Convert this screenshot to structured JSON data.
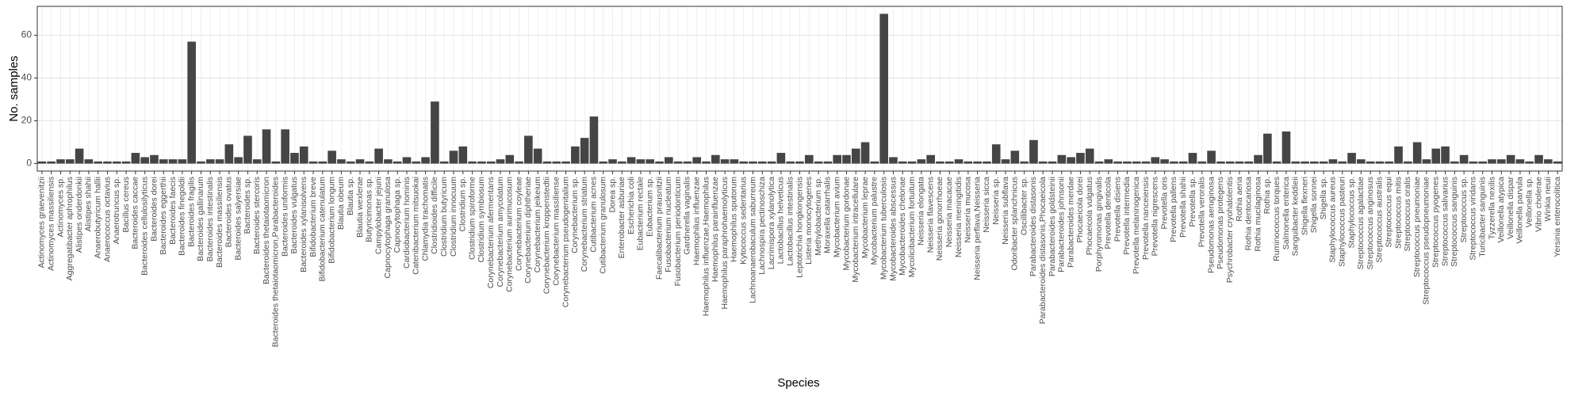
{
  "chart_data": {
    "type": "bar",
    "x_label": "Species",
    "y_label": "No. samples",
    "categories": [
      "Actinomyces graevenitzii",
      "Actinomyces massiliensis",
      "Actinomyces sp.",
      "Aggregatibacter aphrophilus",
      "Alistipes onderdonkii",
      "Alistipes shahii",
      "Anaerobutyricum hallii",
      "Anaerococcus octavius",
      "Anaerotruncus sp.",
      "Bacillus cereus",
      "Bacteroides caccae",
      "Bacteroides cellulosilyticus",
      "Bacteroides dorei",
      "Bacteroides eggerthii",
      "Bacteroides faecis",
      "Bacteroides finegoldii",
      "Bacteroides fragilis",
      "Bacteroides gallinarum",
      "Bacteroides intestinalis",
      "Bacteroides massiliensis",
      "Bacteroides ovatus",
      "Bacteroides salyersiae",
      "Bacteroides sp.",
      "Bacteroides stercoris",
      "Bacteroides thetaiotaomicron",
      "Bacteroides thetaiotaomicron,Parabacteroides",
      "Bacteroides uniformis",
      "Bacteroides vulgatus",
      "Bacteroides xylanisolvens",
      "Bifidobacterium breve",
      "Bifidobacterium catenulatum",
      "Bifidobacterium longum",
      "Blautia obeum",
      "Blautia sp.",
      "Blautia wexlerae",
      "Butyricimonas sp.",
      "Campylobacter jejuni",
      "Capnocytophaga granulosa",
      "Capnocytophaga sp.",
      "Cardiobacterium hominis",
      "Catenibacterium mitsuokai",
      "Chlamydia trachomatis",
      "Clostridioides difficile",
      "Clostridium butyricum",
      "Clostridium innocuum",
      "Clostridium sp.",
      "Clostridium spiroforme",
      "Clostridium symbiosum",
      "Corynebacterium afermentans",
      "Corynebacterium amycolatum",
      "Corynebacterium aurimucosum",
      "Corynebacterium coyleae",
      "Corynebacterium diphtheriae",
      "Corynebacterium jeikeium",
      "Corynebacterium kroppenstedtii",
      "Corynebacterium massiliense",
      "Corynebacterium pseudogenitalium",
      "Corynebacterium sp.",
      "Corynebacterium striatum",
      "Cutibacterium acnes",
      "Cutibacterium granulosum",
      "Dorea sp.",
      "Enterobacter asburiae",
      "Escherichia coli",
      "Eubacterium rectale",
      "Eubacterium sp.",
      "Faecalibacterium prausnitzii",
      "Fusobacterium nucleatum",
      "Fusobacterium periodonticum",
      "Gardnerella vaginalis",
      "Haemophilus influenzae",
      "Haemophilus influenzae,Haemophilus",
      "Haemophilus parainfluenzae",
      "Haemophilus paraphrohaemolyticus",
      "Haemophilus sputorum",
      "Kytococcus sedentarius",
      "Lachnoanaerobaculum saburreum",
      "Lachnospira pectinoschiza",
      "Lacrimispora xylanolytica",
      "Lactobacillus helveticus",
      "Lactobacillus intestinalis",
      "Leptotrichia hongkongensis",
      "Listeria monocytogenes",
      "Methylobacterium sp.",
      "Moraxella catarrhalis",
      "Mycobacterium avium",
      "Mycobacterium gordonae",
      "Mycobacterium intracellulare",
      "Mycobacterium leprae",
      "Mycobacterium palustre",
      "Mycobacterium tuberculosis",
      "Mycobacteroides abscessus",
      "Mycobacteroides chelonae",
      "Mycolicibacterium fortuitum",
      "Neisseria elongata",
      "Neisseria flavescens",
      "Neisseria gonorrhoeae",
      "Neisseria macacae",
      "Neisseria meningitidis",
      "Neisseria mucosa",
      "Neisseria perflava,Neisseria",
      "Neisseria sicca",
      "Neisseria sp.",
      "Neisseria subflava",
      "Odoribacter splanchnicus",
      "Oscillibacter sp.",
      "Parabacteroides distasonis",
      "Parabacteroides distasonis,Phocaeicola",
      "Parabacteroides goldsteinii",
      "Parabacteroides johnsonii",
      "Parabacteroides merdae",
      "Phocaeicola dorei",
      "Phocaeicola vulgatus",
      "Porphyromonas gingivalis",
      "Prevotella denticola",
      "Prevotella disiens",
      "Prevotella intermedia",
      "Prevotella melaninogenica",
      "Prevotella nanceiensis",
      "Prevotella nigrescens",
      "Prevotella oris",
      "Prevotella pallens",
      "Prevotella shahii",
      "Prevotella sp.",
      "Prevotella veroralis",
      "Pseudomonas aeruginosa",
      "Pseudomonas protegens",
      "Psychrobacter cryohalolentis",
      "Rothia aeria",
      "Rothia dentocariosa",
      "Rothia mucilaginosa",
      "Rothia sp.",
      "Ruminococcus torques",
      "Salmonella enterica",
      "Sanguibacter keddieii",
      "Shigella flexneri",
      "Shigella sonnei",
      "Shigella sp.",
      "Staphylococcus aureus",
      "Staphylococcus pasteuri",
      "Staphylococcus sp.",
      "Streptococcus agalactiae",
      "Streptococcus anginosus",
      "Streptococcus australis",
      "Streptococcus equi",
      "Streptococcus mitis",
      "Streptococcus oralis",
      "Streptococcus pneumoniae",
      "Streptococcus pseudopneumoniae",
      "Streptococcus pyogenes",
      "Streptococcus salivarius",
      "Streptococcus sanguinis",
      "Streptococcus sp.",
      "Streptococcus viridans",
      "Turicibacter sanguinis",
      "Tyzzerella nexilis",
      "Veillonella atypica",
      "Veillonella dispar",
      "Veillonella parvula",
      "Veillonella sp.",
      "Vibrio cholerae",
      "Winkia neuii",
      "Yersinia enterocolitica"
    ],
    "values": [
      1,
      1,
      2,
      2,
      7,
      2,
      1,
      1,
      1,
      1,
      5,
      3,
      4,
      2,
      2,
      2,
      57,
      1,
      2,
      2,
      9,
      3,
      13,
      2,
      16,
      1,
      16,
      5,
      8,
      1,
      1,
      6,
      2,
      1,
      2,
      1,
      7,
      2,
      1,
      3,
      1,
      3,
      29,
      1,
      6,
      8,
      1,
      1,
      1,
      2,
      4,
      1,
      13,
      7,
      1,
      1,
      1,
      8,
      12,
      22,
      1,
      2,
      1,
      3,
      2,
      2,
      1,
      3,
      1,
      1,
      3,
      1,
      4,
      2,
      2,
      1,
      1,
      1,
      1,
      5,
      1,
      1,
      4,
      1,
      1,
      4,
      4,
      7,
      10,
      1,
      70,
      3,
      1,
      1,
      2,
      4,
      1,
      1,
      2,
      1,
      1,
      1,
      9,
      2,
      6,
      1,
      11,
      1,
      1,
      4,
      3,
      5,
      7,
      1,
      2,
      1,
      1,
      1,
      1,
      3,
      2,
      1,
      1,
      5,
      1,
      6,
      1,
      1,
      1,
      1,
      4,
      14,
      1,
      15,
      1,
      1,
      1,
      1,
      2,
      1,
      5,
      2,
      1,
      1,
      1,
      8,
      1,
      10,
      2,
      7,
      8,
      1,
      4,
      1,
      1,
      2,
      2,
      4,
      2,
      1,
      4,
      2,
      1
    ],
    "color": "#454545",
    "ylim": [
      -3.5,
      73.5
    ],
    "yticks": [
      0,
      20,
      40,
      60
    ],
    "grid": true
  }
}
